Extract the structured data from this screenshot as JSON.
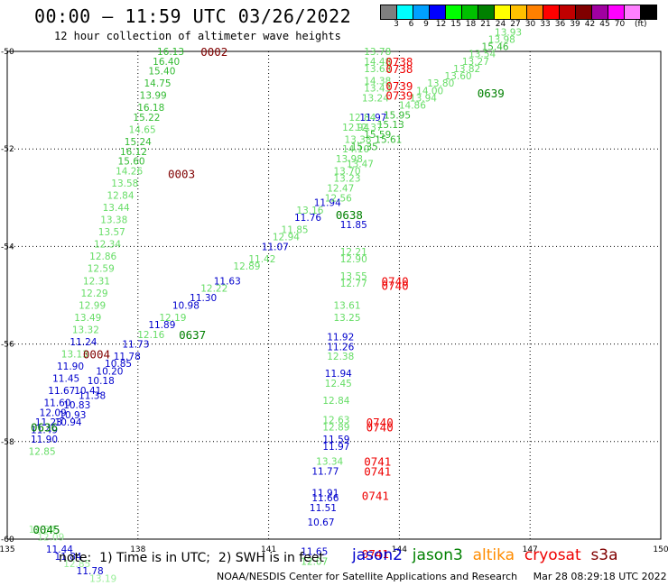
{
  "header": {
    "title": "00:00 – 11:59 UTC 03/26/2022",
    "subtitle": "12 hour collection of altimeter wave heights"
  },
  "legend": {
    "colors": [
      "#7f7f7f",
      "#00ffff",
      "#00a0ff",
      "#0000ff",
      "#00ff00",
      "#00c000",
      "#008000",
      "#ffff00",
      "#ffc000",
      "#ff8000",
      "#ff0000",
      "#c00000",
      "#800000",
      "#a000a0",
      "#ff00ff",
      "#ff80ff",
      "#000000"
    ],
    "labels": [
      "3",
      "6",
      "9",
      "12",
      "15",
      "18",
      "21",
      "24",
      "27",
      "30",
      "33",
      "36",
      "39",
      "42",
      "45",
      "70"
    ],
    "unit": "(ft)"
  },
  "footer": {
    "note": "note:  1) Time is in UTC;  2) SWH is in feet",
    "satellites": [
      {
        "name": "jason2",
        "color": "#0000cc"
      },
      {
        "name": "jason3",
        "color": "#008000"
      },
      {
        "name": "altika",
        "color": "#ff8c00"
      },
      {
        "name": "cryosat",
        "color": "#ee0000"
      },
      {
        "name": "s3a",
        "color": "#800000"
      }
    ],
    "credit": "NOAA/NESDIS Center for Satellite Applications and Research     Mar 28 08:29:18 UTC 2022"
  },
  "chart_data": {
    "type": "scatter",
    "title": "00:00 – 11:59 UTC 03/26/2022",
    "xlabel": "",
    "ylabel": "",
    "xlim": [
      135,
      150
    ],
    "ylim": [
      -60,
      -50
    ],
    "x_ticks": [
      "135",
      "138",
      "141",
      "144",
      "147",
      "150"
    ],
    "y_ticks": [
      "-50",
      "-52",
      "-54",
      "-56",
      "-58",
      "-60"
    ],
    "grid": true,
    "colors": {
      "j2": "#0000cc",
      "j3": "#008000",
      "cs": "#ee0000",
      "s3a": "#800000",
      "green": "#33bb33",
      "light": "#66dd66",
      "pale": "#99ee99"
    },
    "points": [
      {
        "x": 138.75,
        "y": -50.0,
        "t": "16.13",
        "c": "green"
      },
      {
        "x": 138.65,
        "y": -50.2,
        "t": "16.40",
        "c": "green"
      },
      {
        "x": 138.55,
        "y": -50.4,
        "t": "15.40",
        "c": "green"
      },
      {
        "x": 138.45,
        "y": -50.65,
        "t": "14.75",
        "c": "green"
      },
      {
        "x": 138.35,
        "y": -50.9,
        "t": "13.99",
        "c": "green"
      },
      {
        "x": 138.3,
        "y": -51.15,
        "t": "16.18",
        "c": "green"
      },
      {
        "x": 138.2,
        "y": -51.35,
        "t": "15.22",
        "c": "green"
      },
      {
        "x": 138.1,
        "y": -51.6,
        "t": "14.65",
        "c": "light"
      },
      {
        "x": 138.0,
        "y": -51.85,
        "t": "15.24",
        "c": "green"
      },
      {
        "x": 137.9,
        "y": -52.05,
        "t": "16.12",
        "c": "green"
      },
      {
        "x": 137.85,
        "y": -52.25,
        "t": "15.60",
        "c": "green"
      },
      {
        "x": 137.8,
        "y": -52.45,
        "t": "14.26",
        "c": "light"
      },
      {
        "x": 137.7,
        "y": -52.7,
        "t": "13.58",
        "c": "light"
      },
      {
        "x": 137.6,
        "y": -52.95,
        "t": "12.84",
        "c": "light"
      },
      {
        "x": 137.5,
        "y": -53.2,
        "t": "13.44",
        "c": "light"
      },
      {
        "x": 137.45,
        "y": -53.45,
        "t": "13.38",
        "c": "light"
      },
      {
        "x": 137.4,
        "y": -53.7,
        "t": "13.57",
        "c": "light"
      },
      {
        "x": 137.3,
        "y": -53.95,
        "t": "12.34",
        "c": "light"
      },
      {
        "x": 137.2,
        "y": -54.2,
        "t": "12.86",
        "c": "light"
      },
      {
        "x": 137.15,
        "y": -54.45,
        "t": "12.59",
        "c": "light"
      },
      {
        "x": 137.05,
        "y": -54.7,
        "t": "12.31",
        "c": "light"
      },
      {
        "x": 137.0,
        "y": -54.95,
        "t": "12.29",
        "c": "light"
      },
      {
        "x": 136.95,
        "y": -55.2,
        "t": "12.99",
        "c": "light"
      },
      {
        "x": 136.85,
        "y": -55.45,
        "t": "13.49",
        "c": "light"
      },
      {
        "x": 136.8,
        "y": -55.7,
        "t": "13.32",
        "c": "light"
      },
      {
        "x": 136.75,
        "y": -55.95,
        "t": "11.24",
        "c": "j2"
      },
      {
        "x": 136.55,
        "y": -56.2,
        "t": "13.13",
        "c": "light"
      },
      {
        "x": 136.45,
        "y": -56.45,
        "t": "11.90",
        "c": "j2"
      },
      {
        "x": 136.35,
        "y": -56.7,
        "t": "11.45",
        "c": "j2"
      },
      {
        "x": 136.25,
        "y": -56.95,
        "t": "11.67",
        "c": "j2"
      },
      {
        "x": 136.15,
        "y": -57.2,
        "t": "11.60",
        "c": "j2"
      },
      {
        "x": 136.05,
        "y": -57.4,
        "t": "12.09",
        "c": "j2"
      },
      {
        "x": 135.95,
        "y": -57.6,
        "t": "11.23",
        "c": "j2"
      },
      {
        "x": 135.85,
        "y": -57.75,
        "t": "11.49",
        "c": "j2"
      },
      {
        "x": 135.85,
        "y": -57.95,
        "t": "11.90",
        "c": "j2"
      },
      {
        "x": 135.8,
        "y": -58.2,
        "t": "12.85",
        "c": "light"
      },
      {
        "x": 136.6,
        "y": -57.25,
        "t": "10.83",
        "c": "j2"
      },
      {
        "x": 136.5,
        "y": -57.45,
        "t": "10.93",
        "c": "j2"
      },
      {
        "x": 136.4,
        "y": -57.6,
        "t": "10.94",
        "c": "j2"
      },
      {
        "x": 136.85,
        "y": -56.95,
        "t": "10.41",
        "c": "j2"
      },
      {
        "x": 136.95,
        "y": -57.05,
        "t": "11.38",
        "c": "j2"
      },
      {
        "x": 137.15,
        "y": -56.75,
        "t": "10.18",
        "c": "j2"
      },
      {
        "x": 137.35,
        "y": -56.55,
        "t": "10.20",
        "c": "j2"
      },
      {
        "x": 137.55,
        "y": -56.4,
        "t": "10.85",
        "c": "j2"
      },
      {
        "x": 137.75,
        "y": -56.25,
        "t": "11.78",
        "c": "j2"
      },
      {
        "x": 137.95,
        "y": -56.0,
        "t": "11.73",
        "c": "j2"
      },
      {
        "x": 138.3,
        "y": -55.8,
        "t": "12.16",
        "c": "light"
      },
      {
        "x": 138.55,
        "y": -55.6,
        "t": "11.89",
        "c": "j2"
      },
      {
        "x": 138.8,
        "y": -55.45,
        "t": "12.19",
        "c": "light"
      },
      {
        "x": 139.1,
        "y": -55.2,
        "t": "10.98",
        "c": "j2"
      },
      {
        "x": 139.5,
        "y": -55.05,
        "t": "11.30",
        "c": "j2"
      },
      {
        "x": 139.75,
        "y": -54.85,
        "t": "12.22",
        "c": "light"
      },
      {
        "x": 140.05,
        "y": -54.7,
        "t": "11.63",
        "c": "j2"
      },
      {
        "x": 140.5,
        "y": -54.4,
        "t": "12.89",
        "c": "light"
      },
      {
        "x": 140.85,
        "y": -54.25,
        "t": "11.42",
        "c": "light"
      },
      {
        "x": 141.15,
        "y": -54.0,
        "t": "11.07",
        "c": "j2"
      },
      {
        "x": 141.4,
        "y": -53.8,
        "t": "12.94",
        "c": "light"
      },
      {
        "x": 141.6,
        "y": -53.65,
        "t": "11.85",
        "c": "light"
      },
      {
        "x": 141.9,
        "y": -53.4,
        "t": "11.76",
        "c": "j2"
      },
      {
        "x": 141.95,
        "y": -53.25,
        "t": "13.16",
        "c": "light"
      },
      {
        "x": 142.35,
        "y": -53.1,
        "t": "11.94",
        "c": "j2"
      },
      {
        "x": 142.6,
        "y": -53.0,
        "t": "12.56",
        "c": "light"
      },
      {
        "x": 142.65,
        "y": -52.8,
        "t": "12.47",
        "c": "light"
      },
      {
        "x": 142.8,
        "y": -52.6,
        "t": "13.23",
        "c": "light"
      },
      {
        "x": 142.8,
        "y": -52.45,
        "t": "13.70",
        "c": "light"
      },
      {
        "x": 142.85,
        "y": -52.2,
        "t": "13.98",
        "c": "light"
      },
      {
        "x": 143.0,
        "y": -52.0,
        "t": "14.10",
        "c": "light"
      },
      {
        "x": 143.05,
        "y": -51.8,
        "t": "13.38",
        "c": "light"
      },
      {
        "x": 143.0,
        "y": -51.55,
        "t": "12.94",
        "c": "light"
      },
      {
        "x": 143.15,
        "y": -51.35,
        "t": "12.84",
        "c": "light"
      },
      {
        "x": 143.5,
        "y": -51.7,
        "t": "15.59",
        "c": "green"
      },
      {
        "x": 143.75,
        "y": -51.8,
        "t": "15.61",
        "c": "green"
      },
      {
        "x": 143.8,
        "y": -51.5,
        "t": "15.13",
        "c": "green"
      },
      {
        "x": 143.95,
        "y": -51.3,
        "t": "15.95",
        "c": "green"
      },
      {
        "x": 144.3,
        "y": -51.1,
        "t": "14.86",
        "c": "light"
      },
      {
        "x": 144.55,
        "y": -50.95,
        "t": "13.94",
        "c": "light"
      },
      {
        "x": 144.7,
        "y": -50.8,
        "t": "14.00",
        "c": "light"
      },
      {
        "x": 144.95,
        "y": -50.65,
        "t": "13.80",
        "c": "light"
      },
      {
        "x": 145.35,
        "y": -50.5,
        "t": "13.60",
        "c": "light"
      },
      {
        "x": 145.55,
        "y": -50.35,
        "t": "13.82",
        "c": "light"
      },
      {
        "x": 145.75,
        "y": -50.2,
        "t": "13.27",
        "c": "light"
      },
      {
        "x": 145.9,
        "y": -50.05,
        "t": "13.54",
        "c": "light"
      },
      {
        "x": 146.2,
        "y": -49.9,
        "t": "15.46",
        "c": "green"
      },
      {
        "x": 146.35,
        "y": -49.75,
        "t": "13.98",
        "c": "light"
      },
      {
        "x": 146.5,
        "y": -49.6,
        "t": "13.93",
        "c": "light"
      },
      {
        "x": 143.5,
        "y": -50.0,
        "t": "13.78",
        "c": "light"
      },
      {
        "x": 143.5,
        "y": -50.2,
        "t": "14.48",
        "c": "light"
      },
      {
        "x": 143.5,
        "y": -50.35,
        "t": "13.63",
        "c": "light"
      },
      {
        "x": 143.5,
        "y": -50.6,
        "t": "14.38",
        "c": "light"
      },
      {
        "x": 143.5,
        "y": -50.75,
        "t": "13.43",
        "c": "light"
      },
      {
        "x": 143.45,
        "y": -50.95,
        "t": "13.24",
        "c": "light"
      },
      {
        "x": 143.4,
        "y": -51.35,
        "t": "11.97",
        "c": "j2"
      },
      {
        "x": 143.3,
        "y": -51.55,
        "t": "12.37",
        "c": "light"
      },
      {
        "x": 143.2,
        "y": -51.95,
        "t": "15.35",
        "c": "green"
      },
      {
        "x": 143.1,
        "y": -52.3,
        "t": "13.47",
        "c": "light"
      },
      {
        "x": 142.95,
        "y": -53.55,
        "t": "11.85",
        "c": "j2"
      },
      {
        "x": 142.95,
        "y": -54.1,
        "t": "12.21",
        "c": "light"
      },
      {
        "x": 142.95,
        "y": -54.25,
        "t": "12.90",
        "c": "light"
      },
      {
        "x": 142.95,
        "y": -54.6,
        "t": "13.55",
        "c": "light"
      },
      {
        "x": 142.95,
        "y": -54.75,
        "t": "12.77",
        "c": "light"
      },
      {
        "x": 142.8,
        "y": -55.2,
        "t": "13.61",
        "c": "light"
      },
      {
        "x": 142.8,
        "y": -55.45,
        "t": "13.25",
        "c": "light"
      },
      {
        "x": 142.65,
        "y": -55.85,
        "t": "11.92",
        "c": "j2"
      },
      {
        "x": 142.65,
        "y": -56.05,
        "t": "11.26",
        "c": "j2"
      },
      {
        "x": 142.65,
        "y": -56.25,
        "t": "12.38",
        "c": "light"
      },
      {
        "x": 142.6,
        "y": -56.6,
        "t": "11.94",
        "c": "j2"
      },
      {
        "x": 142.6,
        "y": -56.8,
        "t": "12.45",
        "c": "light"
      },
      {
        "x": 142.55,
        "y": -57.15,
        "t": "12.84",
        "c": "light"
      },
      {
        "x": 142.55,
        "y": -57.55,
        "t": "12.63",
        "c": "light"
      },
      {
        "x": 142.55,
        "y": -57.7,
        "t": "12.89",
        "c": "light"
      },
      {
        "x": 142.55,
        "y": -57.95,
        "t": "11.59",
        "c": "j2"
      },
      {
        "x": 142.55,
        "y": -58.1,
        "t": "11.97",
        "c": "j2"
      },
      {
        "x": 142.4,
        "y": -58.4,
        "t": "13.34",
        "c": "light"
      },
      {
        "x": 142.3,
        "y": -58.6,
        "t": "11.77",
        "c": "j2"
      },
      {
        "x": 142.3,
        "y": -59.05,
        "t": "11.91",
        "c": "j2"
      },
      {
        "x": 142.3,
        "y": -59.15,
        "t": "11.66",
        "c": "j2"
      },
      {
        "x": 142.25,
        "y": -59.35,
        "t": "11.51",
        "c": "j2"
      },
      {
        "x": 142.2,
        "y": -59.65,
        "t": "10.67",
        "c": "j2"
      },
      {
        "x": 142.05,
        "y": -60.25,
        "t": "11.65",
        "c": "j2"
      },
      {
        "x": 142.05,
        "y": -60.45,
        "t": "12.07",
        "c": "light"
      },
      {
        "x": 135.8,
        "y": -59.8,
        "t": "12.34",
        "c": "pale"
      },
      {
        "x": 136.0,
        "y": -59.95,
        "t": "12.09",
        "c": "pale"
      },
      {
        "x": 136.2,
        "y": -60.2,
        "t": "11.44",
        "c": "j2"
      },
      {
        "x": 136.4,
        "y": -60.35,
        "t": "11.84",
        "c": "j2"
      },
      {
        "x": 136.6,
        "y": -60.5,
        "t": "12.85",
        "c": "pale"
      },
      {
        "x": 136.9,
        "y": -60.65,
        "t": "11.78",
        "c": "j2"
      },
      {
        "x": 137.2,
        "y": -60.8,
        "t": "13.19",
        "c": "pale"
      }
    ],
    "tags": [
      {
        "x": 139.75,
        "y": -50.0,
        "t": "0002",
        "c": "s3a"
      },
      {
        "x": 139.0,
        "y": -52.5,
        "t": "0003",
        "c": "s3a"
      },
      {
        "x": 137.05,
        "y": -56.2,
        "t": "0004",
        "c": "s3a"
      },
      {
        "x": 135.9,
        "y": -59.8,
        "t": "0045",
        "c": "j3"
      },
      {
        "x": 135.85,
        "y": -57.7,
        "t": "0636",
        "c": "j3"
      },
      {
        "x": 139.25,
        "y": -55.8,
        "t": "0637",
        "c": "j3"
      },
      {
        "x": 142.85,
        "y": -53.35,
        "t": "0638",
        "c": "j3"
      },
      {
        "x": 146.1,
        "y": -50.85,
        "t": "0639",
        "c": "j3"
      },
      {
        "x": 144.0,
        "y": -50.2,
        "t": "0738",
        "c": "cs"
      },
      {
        "x": 144.0,
        "y": -50.35,
        "t": "0738",
        "c": "cs"
      },
      {
        "x": 144.0,
        "y": -50.7,
        "t": "0739",
        "c": "cs"
      },
      {
        "x": 144.0,
        "y": -50.9,
        "t": "0739",
        "c": "cs"
      },
      {
        "x": 143.9,
        "y": -54.7,
        "t": "0740",
        "c": "cs"
      },
      {
        "x": 143.9,
        "y": -54.8,
        "t": "0740",
        "c": "cs"
      },
      {
        "x": 143.55,
        "y": -57.6,
        "t": "0740",
        "c": "cs"
      },
      {
        "x": 143.55,
        "y": -57.7,
        "t": "0740",
        "c": "cs"
      },
      {
        "x": 143.5,
        "y": -58.4,
        "t": "0741",
        "c": "cs"
      },
      {
        "x": 143.5,
        "y": -58.6,
        "t": "0741",
        "c": "cs"
      },
      {
        "x": 143.45,
        "y": -59.1,
        "t": "0741",
        "c": "cs"
      },
      {
        "x": 143.45,
        "y": -60.3,
        "t": "0741",
        "c": "cs"
      }
    ]
  }
}
